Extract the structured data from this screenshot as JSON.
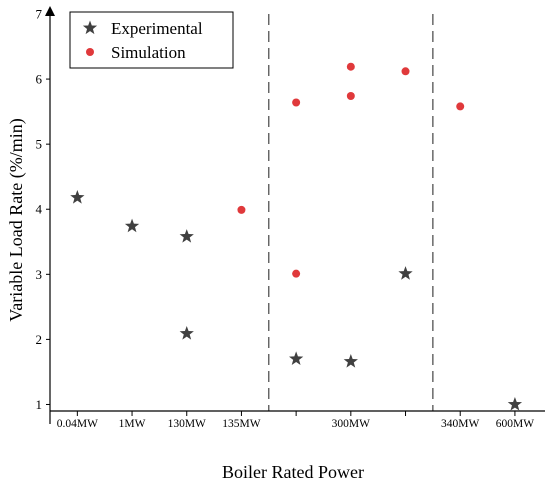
{
  "chart_data": {
    "type": "scatter",
    "title": "",
    "xlabel": "Boiler Rated Power",
    "ylabel": "Variable Load Rate (%/min)",
    "ylim": [
      0.7,
      7
    ],
    "yticks": [
      1,
      2,
      3,
      4,
      5,
      6,
      7
    ],
    "categories": [
      "0.04MW",
      "1MW",
      "130MW",
      "135MW",
      "",
      "300MW",
      "",
      "340MW",
      "600MW"
    ],
    "grid": false,
    "legend_position": "top-left",
    "dividers_after_slot": [
      4,
      7
    ],
    "series": [
      {
        "name": "Experimental",
        "marker": "star",
        "color": "#404040",
        "points": [
          {
            "slot": 1,
            "y": 4.18
          },
          {
            "slot": 2,
            "y": 3.74
          },
          {
            "slot": 3,
            "y": 3.58
          },
          {
            "slot": 3,
            "y": 2.09
          },
          {
            "slot": 5,
            "y": 1.7
          },
          {
            "slot": 6,
            "y": 1.66
          },
          {
            "slot": 7,
            "y": 3.01
          },
          {
            "slot": 9,
            "y": 1.0
          }
        ]
      },
      {
        "name": "Simulation",
        "marker": "circle",
        "color": "#e0393b",
        "points": [
          {
            "slot": 4,
            "y": 3.99
          },
          {
            "slot": 5,
            "y": 5.64
          },
          {
            "slot": 5,
            "y": 3.01
          },
          {
            "slot": 6,
            "y": 6.19
          },
          {
            "slot": 6,
            "y": 5.74
          },
          {
            "slot": 7,
            "y": 6.12
          },
          {
            "slot": 8,
            "y": 5.58
          }
        ]
      }
    ]
  }
}
